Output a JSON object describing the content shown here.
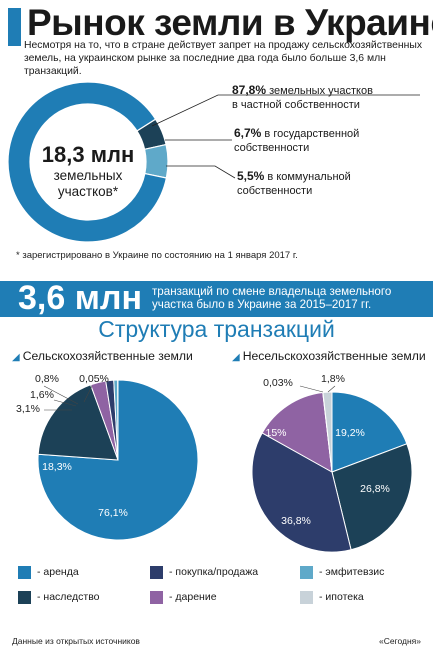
{
  "header": {
    "title": "Рынок земли в Украине",
    "intro": "Несмотря на то, что в стране действует запрет на продажу сельскохозяйственных земель, на украинском рынке за последние два года было больше 3,6 млн транзакций."
  },
  "donut": {
    "center_value": "18,3 млн",
    "center_line1": "земельных",
    "center_line2": "участков*",
    "items": [
      {
        "value": "87,8%",
        "text1": " земельных участков",
        "text2": "в частной собственности",
        "share": 87.8,
        "color": "#1f7db5"
      },
      {
        "value": "6,7%",
        "text1": " в государственной",
        "text2": "собственности",
        "share": 6.7,
        "color": "#5fa9c9"
      },
      {
        "value": "5,5%",
        "text1": " в коммунальной",
        "text2": "собственности",
        "share": 5.5,
        "color": "#1c4157"
      }
    ],
    "note": "* зарегистрировано в Украине по состоянию на 1 января 2017 г."
  },
  "band": {
    "number": "3,6 млн",
    "text": "транзакций по смене владельца земельного участка было в Украине за 2015–2017 гг."
  },
  "structure": {
    "title": "Структура транзакций"
  },
  "chart_data": [
    {
      "type": "pie",
      "title": "Сельскохозяйственные земли",
      "categories": [
        "аренда",
        "наследство",
        "дарение",
        "покупка/продажа",
        "эмфитевзис",
        "ипотека"
      ],
      "values": [
        76.1,
        18.3,
        3.1,
        1.6,
        0.8,
        0.05
      ],
      "labels": [
        "76,1%",
        "18,3%",
        "3,1%",
        "1,6%",
        "0,8%",
        "0,05%"
      ],
      "colors": [
        "#1f7db5",
        "#1c4157",
        "#8f63a3",
        "#2d3d6b",
        "#5fa9c9",
        "#c8d2d9"
      ]
    },
    {
      "type": "pie",
      "title": "Несельскохозяйственные земли",
      "categories": [
        "аренда",
        "наследство",
        "покупка/продажа",
        "дарение",
        "эмфитевзис",
        "ипотека"
      ],
      "values": [
        19.2,
        26.8,
        36.8,
        15,
        0.03,
        1.8
      ],
      "labels": [
        "19,2%",
        "26,8%",
        "36,8%",
        "15%",
        "0,03%",
        "1,8%"
      ],
      "colors": [
        "#1f7db5",
        "#1c4157",
        "#2d3d6b",
        "#8f63a3",
        "#5fa9c9",
        "#c8d2d9"
      ]
    }
  ],
  "legend": [
    {
      "label": "- аренда",
      "color": "#1f7db5"
    },
    {
      "label": "- покупка/продажа",
      "color": "#2d3d6b"
    },
    {
      "label": "- эмфитевзис",
      "color": "#5fa9c9"
    },
    {
      "label": "- наследство",
      "color": "#1c4157"
    },
    {
      "label": "- дарение",
      "color": "#8f63a3"
    },
    {
      "label": "- ипотека",
      "color": "#c8d2d9"
    }
  ],
  "footer": {
    "source": "Данные из открытых источников",
    "brand": "«Сегодня»"
  }
}
